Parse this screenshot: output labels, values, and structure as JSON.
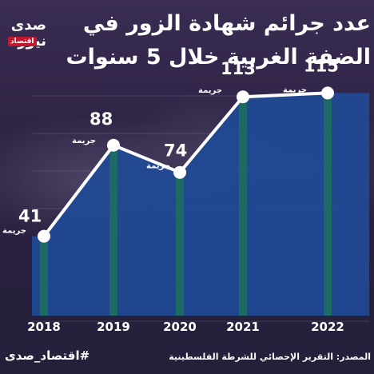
{
  "brand": {
    "logo_text": "صدى نيوز",
    "logo_sub": "اقتصاد"
  },
  "title": {
    "line1": "عدد جرائم شهادة الزور في",
    "line2": "الضفة الغربية خلال 5 سنوات"
  },
  "footer": {
    "hashtag": "#اقتصاد_صدى",
    "source": "المصدر: التقرير الإحصائي للشرطة الفلسطينية"
  },
  "colors": {
    "area": "#1f4a96",
    "bars": "#1d6b62",
    "line": "#ffffff",
    "text": "#ffffff"
  },
  "chart_data": {
    "type": "line",
    "categories": [
      "2018",
      "2019",
      "2020",
      "2021",
      "2022"
    ],
    "values": [
      41,
      88,
      74,
      113,
      115
    ],
    "value_unit": "جريمة",
    "ylim": [
      0,
      130
    ],
    "grid": true
  }
}
